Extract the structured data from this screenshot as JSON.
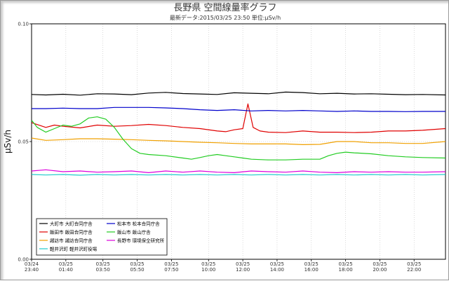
{
  "chart_data": {
    "type": "line",
    "title": "長野県 空間線量率グラフ",
    "subtitle": "最新データ:2015/03/25 23:50 単位:μSv/h",
    "ylabel": "μSv/h",
    "ylim": [
      0.0,
      0.1
    ],
    "yticks": [
      "0.00",
      "0.05",
      "0.10"
    ],
    "ytick_values": [
      0.0,
      0.05,
      0.1
    ],
    "xlim": [
      23.6667,
      47.8333
    ],
    "x_ticks": [
      {
        "date": "03/24",
        "time": "23:40",
        "h": 23.6667
      },
      {
        "date": "03/25",
        "time": "01:40",
        "h": 25.6667
      },
      {
        "date": "03/25",
        "time": "03:50",
        "h": 27.8333
      },
      {
        "date": "03/25",
        "time": "05:50",
        "h": 29.8333
      },
      {
        "date": "03/25",
        "time": "07:50",
        "h": 31.8333
      },
      {
        "date": "03/25",
        "time": "10:00",
        "h": 34.0
      },
      {
        "date": "03/25",
        "time": "12:00",
        "h": 36.0
      },
      {
        "date": "03/25",
        "time": "14:00",
        "h": 38.0
      },
      {
        "date": "03/25",
        "time": "16:00",
        "h": 40.0
      },
      {
        "date": "03/25",
        "time": "18:00",
        "h": 42.0
      },
      {
        "date": "03/25",
        "time": "20:00",
        "h": 44.0
      },
      {
        "date": "03/25",
        "time": "22:00",
        "h": 46.0
      }
    ],
    "grid": true,
    "legend_position": "bottom-left",
    "series": [
      {
        "name": "大町市 大町合同庁舎",
        "color": "#000000",
        "points": [
          [
            23.67,
            0.07
          ],
          [
            24.5,
            0.0698
          ],
          [
            25.5,
            0.0701
          ],
          [
            26.5,
            0.0697
          ],
          [
            27.5,
            0.0703
          ],
          [
            28.5,
            0.0702
          ],
          [
            29.5,
            0.0699
          ],
          [
            30.5,
            0.0706
          ],
          [
            31.5,
            0.0709
          ],
          [
            32.5,
            0.0704
          ],
          [
            33.5,
            0.0702
          ],
          [
            34.5,
            0.07
          ],
          [
            35.5,
            0.0707
          ],
          [
            36.5,
            0.0705
          ],
          [
            37.5,
            0.0703
          ],
          [
            38.5,
            0.071
          ],
          [
            39.5,
            0.0708
          ],
          [
            40.5,
            0.0703
          ],
          [
            41.5,
            0.0705
          ],
          [
            42.5,
            0.0702
          ],
          [
            43.5,
            0.0703
          ],
          [
            44.5,
            0.0701
          ],
          [
            45.5,
            0.0699
          ],
          [
            46.5,
            0.07
          ],
          [
            47.83,
            0.0698
          ]
        ]
      },
      {
        "name": "飯田市 飯田合同庁舎",
        "color": "#e00000",
        "points": [
          [
            23.67,
            0.058
          ],
          [
            24.5,
            0.056
          ],
          [
            25.0,
            0.057
          ],
          [
            25.5,
            0.0565
          ],
          [
            26.5,
            0.0558
          ],
          [
            27.5,
            0.057
          ],
          [
            28.5,
            0.0565
          ],
          [
            29.5,
            0.0568
          ],
          [
            30.5,
            0.0573
          ],
          [
            31.5,
            0.0568
          ],
          [
            32.5,
            0.056
          ],
          [
            33.5,
            0.0555
          ],
          [
            34.5,
            0.0545
          ],
          [
            35.0,
            0.0542
          ],
          [
            35.5,
            0.055
          ],
          [
            36.0,
            0.0555
          ],
          [
            36.3,
            0.066
          ],
          [
            36.6,
            0.056
          ],
          [
            37.0,
            0.0545
          ],
          [
            37.5,
            0.054
          ],
          [
            38.5,
            0.0538
          ],
          [
            39.5,
            0.0545
          ],
          [
            40.5,
            0.054
          ],
          [
            41.5,
            0.054
          ],
          [
            42.5,
            0.0538
          ],
          [
            43.5,
            0.054
          ],
          [
            44.5,
            0.0545
          ],
          [
            45.5,
            0.0545
          ],
          [
            46.5,
            0.0548
          ],
          [
            47.83,
            0.0555
          ]
        ]
      },
      {
        "name": "諏訪市 諏訪合同庁舎",
        "color": "#f0a000",
        "points": [
          [
            23.67,
            0.0515
          ],
          [
            24.5,
            0.0505
          ],
          [
            25.5,
            0.0508
          ],
          [
            26.5,
            0.0512
          ],
          [
            27.5,
            0.0512
          ],
          [
            28.5,
            0.051
          ],
          [
            29.5,
            0.0508
          ],
          [
            30.5,
            0.0505
          ],
          [
            31.5,
            0.0503
          ],
          [
            32.5,
            0.05
          ],
          [
            33.5,
            0.0497
          ],
          [
            34.5,
            0.0495
          ],
          [
            35.5,
            0.0492
          ],
          [
            36.5,
            0.049
          ],
          [
            37.5,
            0.049
          ],
          [
            38.5,
            0.049
          ],
          [
            39.5,
            0.0487
          ],
          [
            40.5,
            0.0488
          ],
          [
            41.5,
            0.05
          ],
          [
            42.5,
            0.05
          ],
          [
            43.5,
            0.0495
          ],
          [
            44.5,
            0.0495
          ],
          [
            45.5,
            0.0492
          ],
          [
            46.5,
            0.0492
          ],
          [
            47.83,
            0.05
          ]
        ]
      },
      {
        "name": "軽井沢町 軽井沢町役場",
        "color": "#22cccc",
        "points": [
          [
            23.67,
            0.036
          ],
          [
            24.5,
            0.0358
          ],
          [
            25.5,
            0.036
          ],
          [
            26.5,
            0.0357
          ],
          [
            27.5,
            0.036
          ],
          [
            28.5,
            0.0358
          ],
          [
            29.5,
            0.036
          ],
          [
            30.5,
            0.0358
          ],
          [
            31.5,
            0.036
          ],
          [
            32.5,
            0.0358
          ],
          [
            33.5,
            0.036
          ],
          [
            34.5,
            0.0358
          ],
          [
            35.5,
            0.036
          ],
          [
            36.5,
            0.0358
          ],
          [
            37.5,
            0.036
          ],
          [
            38.5,
            0.0358
          ],
          [
            39.5,
            0.036
          ],
          [
            40.5,
            0.0358
          ],
          [
            41.5,
            0.036
          ],
          [
            42.5,
            0.0358
          ],
          [
            43.5,
            0.036
          ],
          [
            44.5,
            0.0358
          ],
          [
            45.5,
            0.036
          ],
          [
            46.5,
            0.0358
          ],
          [
            47.83,
            0.036
          ]
        ]
      },
      {
        "name": "松本市 松本合同庁舎",
        "color": "#0000cc",
        "points": [
          [
            23.67,
            0.064
          ],
          [
            24.5,
            0.064
          ],
          [
            25.5,
            0.0642
          ],
          [
            26.5,
            0.064
          ],
          [
            27.5,
            0.064
          ],
          [
            28.5,
            0.0645
          ],
          [
            29.5,
            0.0645
          ],
          [
            30.5,
            0.0645
          ],
          [
            31.5,
            0.0643
          ],
          [
            32.5,
            0.064
          ],
          [
            33.5,
            0.0635
          ],
          [
            34.5,
            0.0632
          ],
          [
            35.5,
            0.0635
          ],
          [
            36.5,
            0.063
          ],
          [
            37.5,
            0.0632
          ],
          [
            38.5,
            0.063
          ],
          [
            39.5,
            0.0632
          ],
          [
            40.5,
            0.063
          ],
          [
            41.5,
            0.0628
          ],
          [
            42.5,
            0.063
          ],
          [
            43.5,
            0.0628
          ],
          [
            44.5,
            0.0628
          ],
          [
            45.5,
            0.0627
          ],
          [
            46.5,
            0.0628
          ],
          [
            47.83,
            0.0628
          ]
        ]
      },
      {
        "name": "飯山市 飯山庁舎",
        "color": "#22cc22",
        "points": [
          [
            23.67,
            0.059
          ],
          [
            24.0,
            0.056
          ],
          [
            24.5,
            0.054
          ],
          [
            25.0,
            0.0555
          ],
          [
            25.5,
            0.057
          ],
          [
            26.0,
            0.0565
          ],
          [
            26.5,
            0.0575
          ],
          [
            27.0,
            0.06
          ],
          [
            27.5,
            0.0605
          ],
          [
            28.0,
            0.0595
          ],
          [
            28.5,
            0.056
          ],
          [
            29.0,
            0.051
          ],
          [
            29.5,
            0.047
          ],
          [
            30.0,
            0.045
          ],
          [
            30.5,
            0.0445
          ],
          [
            31.5,
            0.044
          ],
          [
            32.5,
            0.043
          ],
          [
            33.0,
            0.0425
          ],
          [
            33.5,
            0.0432
          ],
          [
            34.0,
            0.044
          ],
          [
            34.5,
            0.0445
          ],
          [
            35.0,
            0.044
          ],
          [
            35.5,
            0.0435
          ],
          [
            36.0,
            0.043
          ],
          [
            36.5,
            0.0425
          ],
          [
            37.5,
            0.0422
          ],
          [
            38.5,
            0.0422
          ],
          [
            39.5,
            0.0425
          ],
          [
            40.5,
            0.0425
          ],
          [
            41.0,
            0.044
          ],
          [
            41.5,
            0.045
          ],
          [
            42.0,
            0.0455
          ],
          [
            42.5,
            0.0452
          ],
          [
            43.5,
            0.0448
          ],
          [
            44.5,
            0.044
          ],
          [
            45.5,
            0.0435
          ],
          [
            46.5,
            0.0432
          ],
          [
            47.83,
            0.043
          ]
        ]
      },
      {
        "name": "長野市 環境保全研究所",
        "color": "#dd00dd",
        "points": [
          [
            23.67,
            0.0375
          ],
          [
            24.5,
            0.038
          ],
          [
            25.5,
            0.0372
          ],
          [
            26.5,
            0.0375
          ],
          [
            27.5,
            0.037
          ],
          [
            28.5,
            0.0372
          ],
          [
            29.5,
            0.0375
          ],
          [
            30.5,
            0.0368
          ],
          [
            31.5,
            0.0375
          ],
          [
            32.5,
            0.037
          ],
          [
            33.5,
            0.0375
          ],
          [
            34.5,
            0.037
          ],
          [
            35.5,
            0.0368
          ],
          [
            36.5,
            0.0375
          ],
          [
            37.5,
            0.0372
          ],
          [
            38.5,
            0.037
          ],
          [
            39.5,
            0.0375
          ],
          [
            40.5,
            0.037
          ],
          [
            41.5,
            0.0368
          ],
          [
            42.5,
            0.0372
          ],
          [
            43.5,
            0.037
          ],
          [
            44.5,
            0.0372
          ],
          [
            45.5,
            0.037
          ],
          [
            46.5,
            0.037
          ],
          [
            47.83,
            0.0372
          ]
        ]
      }
    ],
    "legend": [
      {
        "label": "大町市 大町合同庁舎",
        "color": "#000000"
      },
      {
        "label": "松本市 松本合同庁舎",
        "color": "#0000cc"
      },
      {
        "label": "飯田市 飯田合同庁舎",
        "color": "#e00000"
      },
      {
        "label": "飯山市 飯山庁舎",
        "color": "#22cc22"
      },
      {
        "label": "諏訪市 諏訪合同庁舎",
        "color": "#f0a000"
      },
      {
        "label": "長野市 環境保全研究所",
        "color": "#dd00dd"
      },
      {
        "label": "軽井沢町 軽井沢町役場",
        "color": "#22cccc"
      }
    ]
  }
}
